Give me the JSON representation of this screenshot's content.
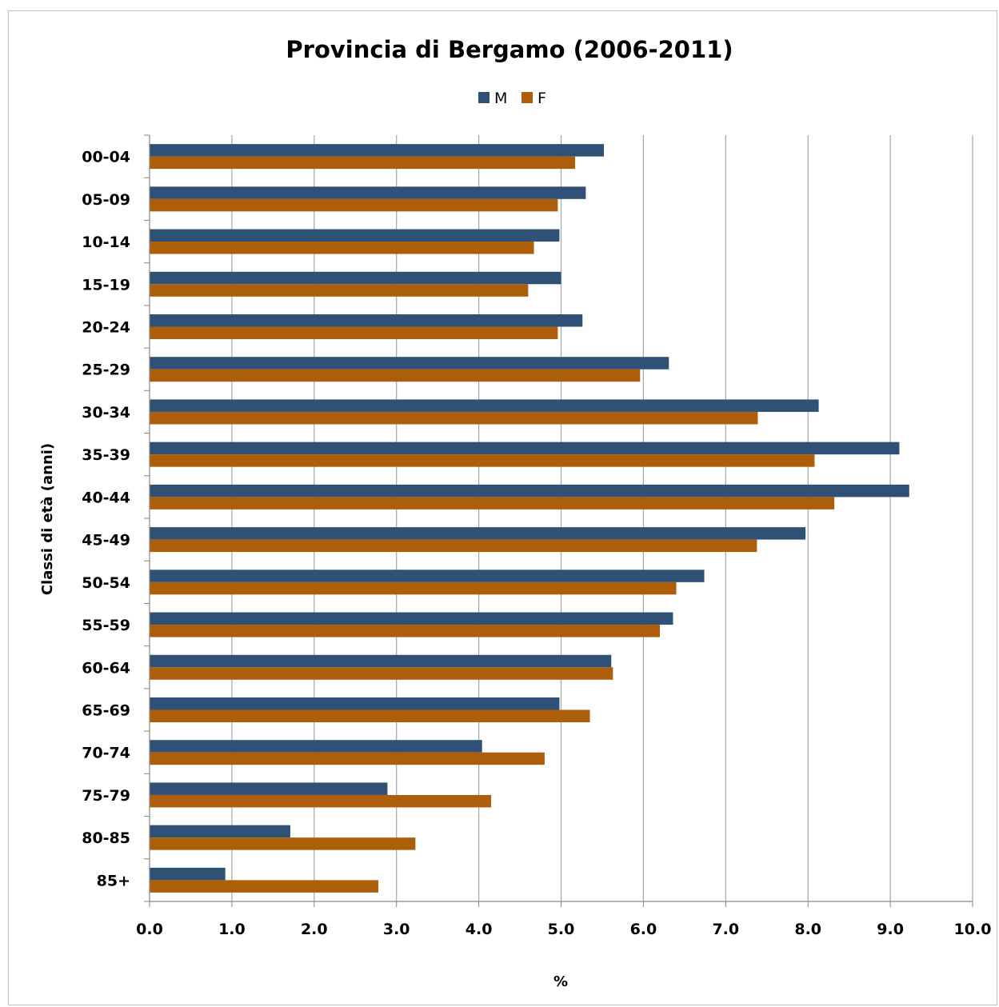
{
  "colors": {
    "M": "#2f5175",
    "F": "#ad5e0b",
    "grid": "#a6a6a6",
    "axis": "#868686"
  },
  "chart_data": {
    "type": "bar",
    "orientation": "horizontal",
    "title": "Provincia di Bergamo (2006-2011)",
    "xlabel": "%",
    "ylabel": "Classi di età (anni)",
    "xlim": [
      0,
      10
    ],
    "xticks": [
      "0.0",
      "1.0",
      "2.0",
      "3.0",
      "4.0",
      "5.0",
      "6.0",
      "7.0",
      "8.0",
      "9.0",
      "10.0"
    ],
    "grid": true,
    "legend_position": "top",
    "categories": [
      "00-04",
      "05-09",
      "10-14",
      "15-19",
      "20-24",
      "25-29",
      "30-34",
      "35-39",
      "40-44",
      "45-49",
      "50-54",
      "55-59",
      "60-64",
      "65-69",
      "70-74",
      "75-79",
      "80-85",
      "85+"
    ],
    "series": [
      {
        "name": "M",
        "values": [
          5.52,
          5.3,
          4.98,
          5.0,
          5.26,
          6.31,
          8.13,
          9.11,
          9.23,
          7.97,
          6.74,
          6.36,
          5.61,
          4.98,
          4.04,
          2.89,
          1.71,
          0.92
        ]
      },
      {
        "name": "F",
        "values": [
          5.17,
          4.96,
          4.67,
          4.6,
          4.96,
          5.96,
          7.39,
          8.08,
          8.32,
          7.38,
          6.4,
          6.2,
          5.63,
          5.35,
          4.8,
          4.15,
          3.23,
          2.78
        ]
      }
    ]
  }
}
